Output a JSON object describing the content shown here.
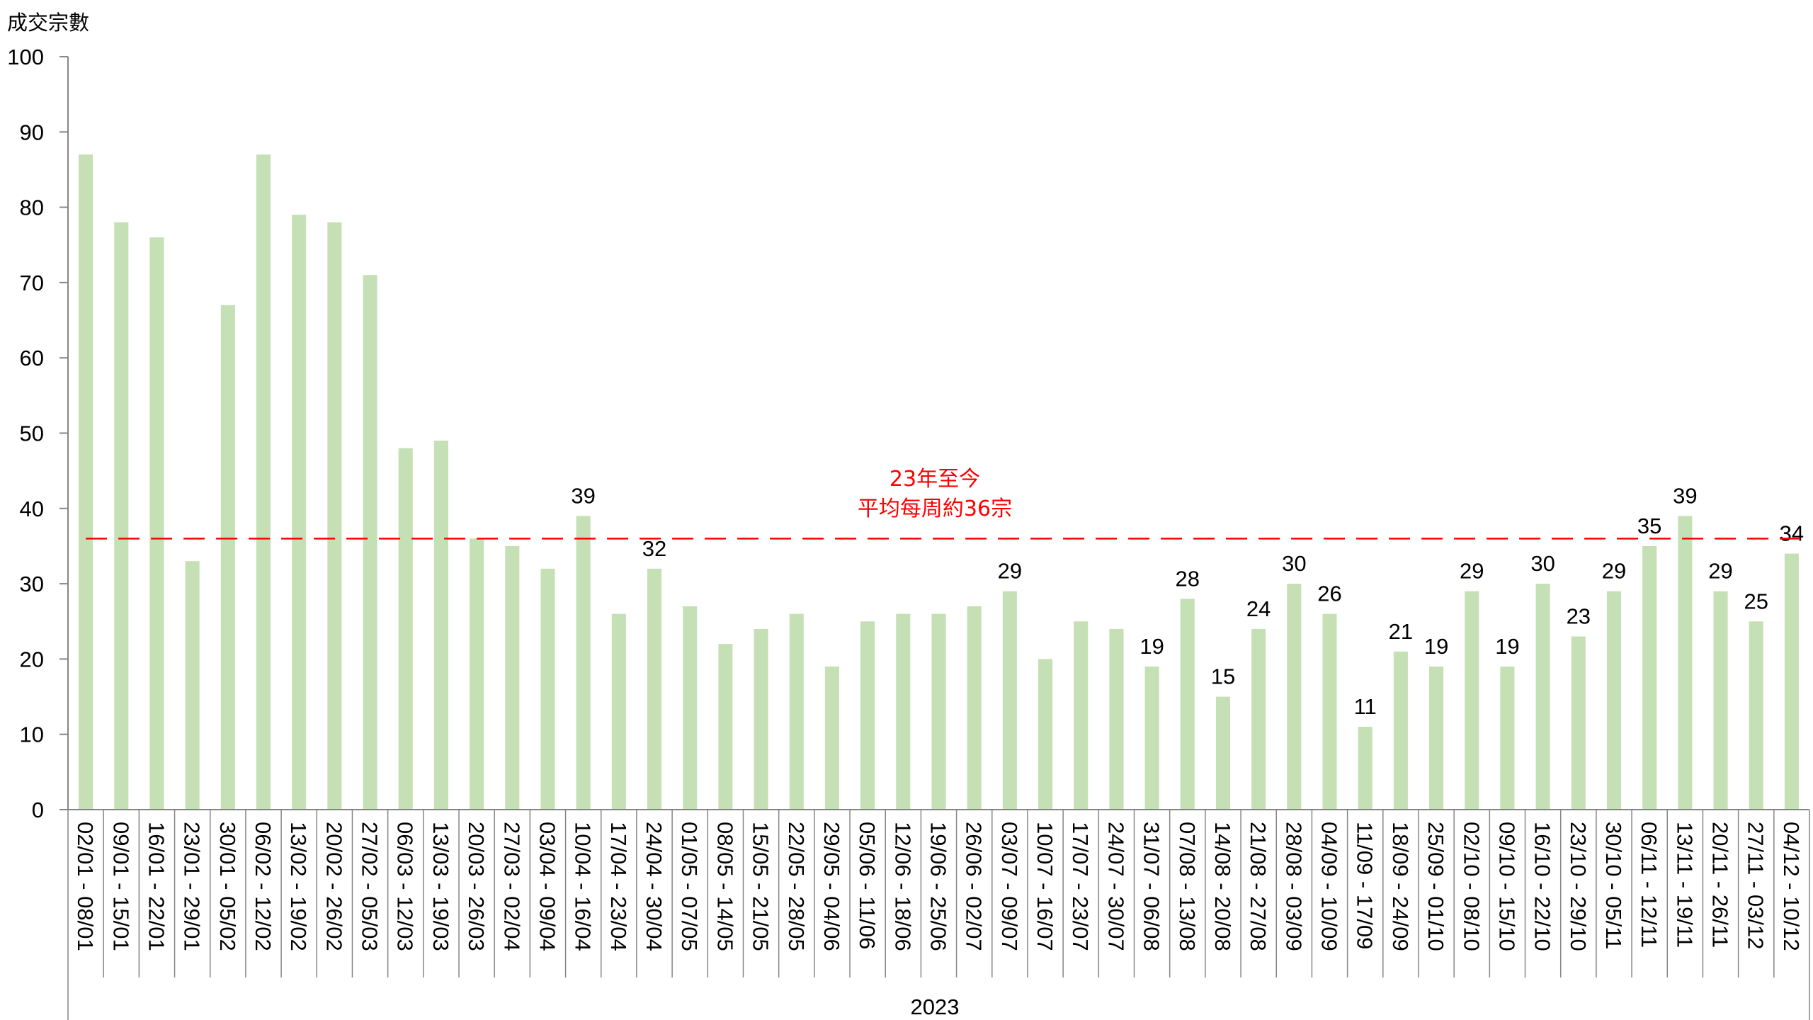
{
  "chart_data": {
    "type": "bar",
    "ylabel": "成交宗數",
    "ylim": [
      0,
      100
    ],
    "yticks": [
      0,
      10,
      20,
      30,
      40,
      50,
      60,
      70,
      80,
      90,
      100
    ],
    "group_label": "2023",
    "categories": [
      "02/01 - 08/01",
      "09/01 - 15/01",
      "16/01 - 22/01",
      "23/01 - 29/01",
      "30/01 - 05/02",
      "06/02 - 12/02",
      "13/02 - 19/02",
      "20/02 - 26/02",
      "27/02 - 05/03",
      "06/03 - 12/03",
      "13/03 - 19/03",
      "20/03 - 26/03",
      "27/03 - 02/04",
      "03/04 - 09/04",
      "10/04 - 16/04",
      "17/04 - 23/04",
      "24/04 - 30/04",
      "01/05 - 07/05",
      "08/05 - 14/05",
      "15/05 - 21/05",
      "22/05 - 28/05",
      "29/05 - 04/06",
      "05/06 - 11/06",
      "12/06 - 18/06",
      "19/06 - 25/06",
      "26/06 - 02/07",
      "03/07 - 09/07",
      "10/07 - 16/07",
      "17/07 - 23/07",
      "24/07 - 30/07",
      "31/07 - 06/08",
      "07/08 - 13/08",
      "14/08 - 20/08",
      "21/08 - 27/08",
      "28/08 - 03/09",
      "04/09 - 10/09",
      "11/09 - 17/09",
      "18/09 - 24/09",
      "25/09 - 01/10",
      "02/10 - 08/10",
      "09/10 - 15/10",
      "16/10 - 22/10",
      "23/10 - 29/10",
      "30/10 - 05/11",
      "06/11 - 12/11",
      "13/11 - 19/11",
      "20/11 - 26/11",
      "27/11 - 03/12",
      "04/12 - 10/12"
    ],
    "values": [
      87,
      78,
      76,
      33,
      67,
      87,
      79,
      78,
      71,
      48,
      49,
      36,
      35,
      32,
      39,
      26,
      32,
      27,
      22,
      24,
      26,
      19,
      25,
      26,
      26,
      27,
      29,
      20,
      25,
      24,
      19,
      28,
      15,
      24,
      30,
      26,
      11,
      21,
      19,
      29,
      19,
      30,
      23,
      29,
      35,
      39,
      29,
      25,
      34
    ],
    "data_labels": {
      "14": "39",
      "16": "32",
      "26": "29",
      "30": "19",
      "31": "28",
      "32": "15",
      "33": "24",
      "34": "30",
      "35": "26",
      "36": "11",
      "37": "21",
      "38": "19",
      "39": "29",
      "40": "19",
      "41": "30",
      "42": "23",
      "43": "29",
      "44": "35",
      "45": "39",
      "46": "29",
      "47": "25",
      "48": "34"
    },
    "bar_color": "#c5e0b4",
    "average_line": {
      "value": 36,
      "color": "#ff0000",
      "style": "dashed",
      "annotation": [
        "23年至今",
        "平均每周約36宗"
      ]
    },
    "grid": false
  }
}
